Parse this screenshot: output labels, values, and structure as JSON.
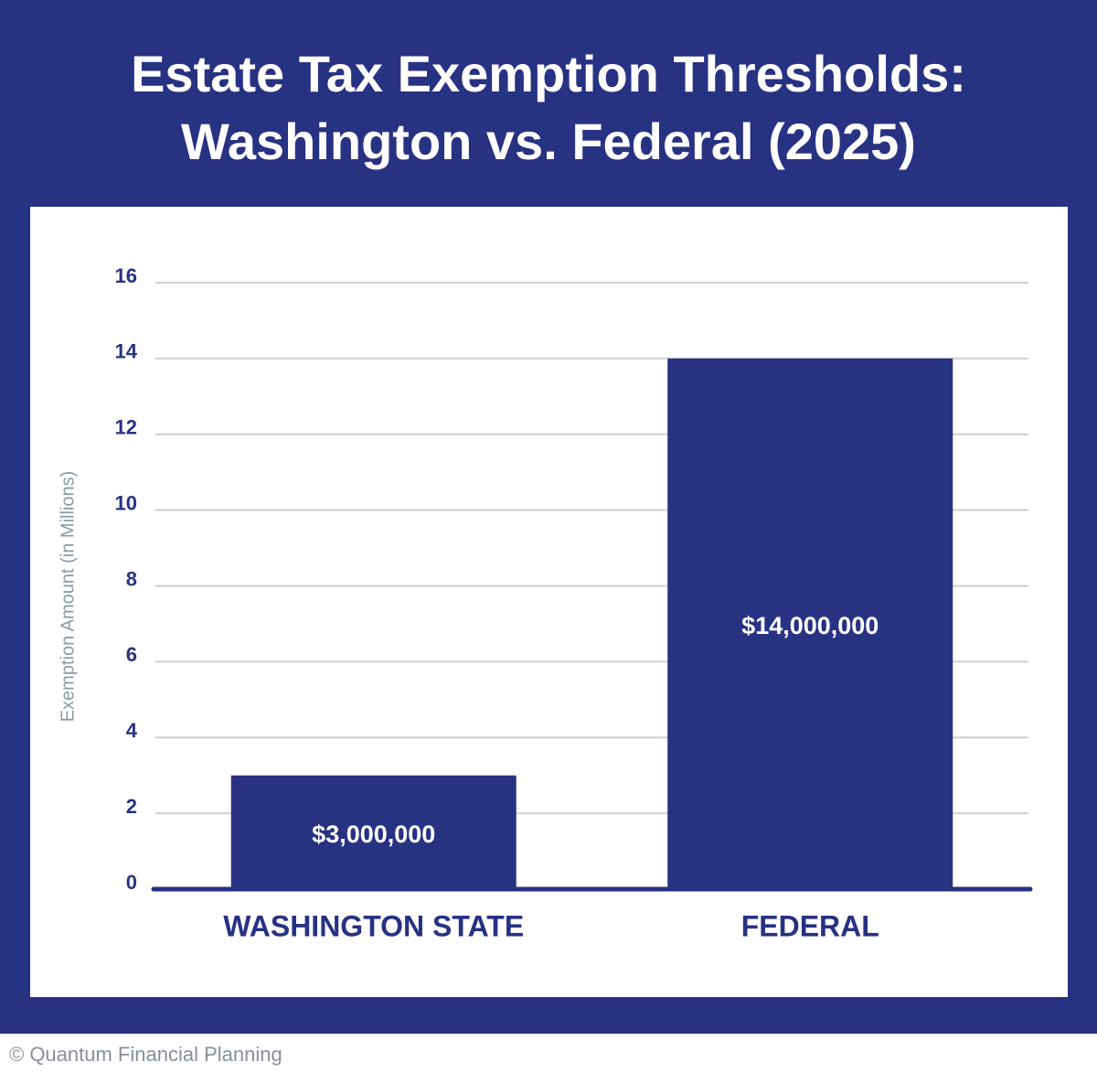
{
  "chart_data": {
    "type": "bar",
    "title": "Estate Tax Exemption Thresholds: Washington vs. Federal (2025)",
    "y_label": "Exemption Amount (in Millions)",
    "categories": [
      "WASHINGTON STATE",
      "FEDERAL"
    ],
    "values": [
      3,
      14
    ],
    "value_labels": [
      "$3,000,000",
      "$14,000,000"
    ],
    "color": "#283282",
    "ylim": [
      0,
      16
    ],
    "yticks": [
      0,
      2,
      4,
      6,
      8,
      10,
      12,
      14,
      16
    ],
    "grid": true
  },
  "footer": "© Quantum Financial Planning"
}
